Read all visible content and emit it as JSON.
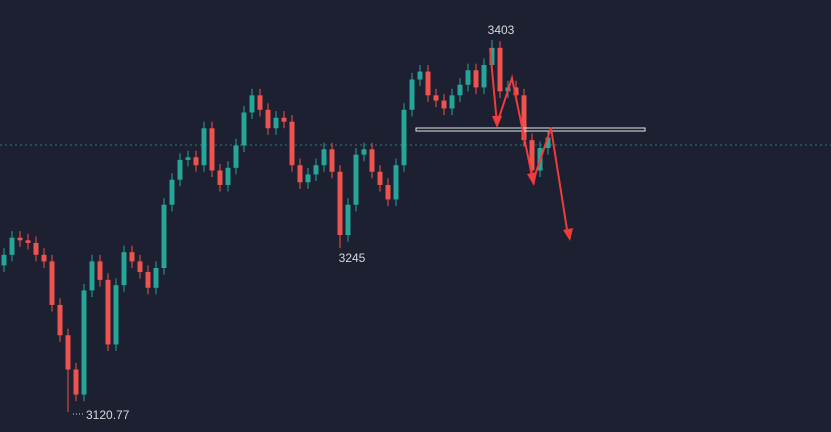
{
  "chart_data": {
    "type": "candlestick",
    "annotations": [
      "3403",
      "3245",
      "3120.77"
    ],
    "up_color": "#26a69a",
    "down_color": "#ef5350",
    "ylim": [
      3105.6,
      3433.3
    ],
    "open": [
      3232,
      3240,
      3253,
      3251,
      3249,
      3240,
      3235,
      3202,
      3179,
      3153,
      3134,
      3213,
      3235,
      3221,
      3172,
      3217,
      3242,
      3235,
      3227,
      3215,
      3230,
      3278,
      3297,
      3312,
      3314,
      3308,
      3336,
      3304,
      3293,
      3306,
      3323,
      3348,
      3361,
      3350,
      3336,
      3344,
      3341,
      3308,
      3295,
      3301,
      3308,
      3320,
      3303,
      3255,
      3278,
      3316,
      3320,
      3303,
      3293,
      3282,
      3308,
      3350,
      3373,
      3379,
      3361,
      3357,
      3351,
      3361,
      3369,
      3380,
      3367,
      3384,
      3397,
      3364,
      3367,
      3361,
      3327,
      3304,
      3321
    ],
    "high": [
      3245,
      3258,
      3258,
      3256,
      3254,
      3245,
      3240,
      3207,
      3184,
      3158,
      3218,
      3240,
      3240,
      3226,
      3222,
      3247,
      3247,
      3240,
      3232,
      3235,
      3283,
      3302,
      3317,
      3319,
      3319,
      3341,
      3341,
      3309,
      3311,
      3328,
      3353,
      3366,
      3366,
      3355,
      3349,
      3349,
      3346,
      3313,
      3306,
      3313,
      3325,
      3325,
      3308,
      3283,
      3321,
      3325,
      3325,
      3308,
      3298,
      3313,
      3355,
      3378,
      3384,
      3384,
      3366,
      3362,
      3366,
      3374,
      3385,
      3385,
      3389,
      3403,
      3402,
      3372,
      3372,
      3366,
      3332,
      3326,
      3334
    ],
    "low": [
      3227,
      3235,
      3246,
      3244,
      3235,
      3230,
      3197,
      3174,
      3120.77,
      3129,
      3129,
      3208,
      3216,
      3167,
      3167,
      3212,
      3230,
      3222,
      3210,
      3210,
      3225,
      3273,
      3292,
      3307,
      3303,
      3303,
      3299,
      3288,
      3288,
      3301,
      3318,
      3343,
      3345,
      3331,
      3331,
      3336,
      3303,
      3290,
      3290,
      3296,
      3303,
      3298,
      3245,
      3250,
      3273,
      3311,
      3298,
      3288,
      3277,
      3277,
      3303,
      3345,
      3368,
      3356,
      3352,
      3346,
      3346,
      3356,
      3364,
      3362,
      3362,
      3379,
      3359,
      3359,
      3356,
      3322,
      3299,
      3299,
      3316
    ],
    "close": [
      3240,
      3253,
      3251,
      3249,
      3240,
      3235,
      3202,
      3179,
      3153,
      3134,
      3213,
      3235,
      3221,
      3172,
      3217,
      3242,
      3235,
      3227,
      3215,
      3230,
      3278,
      3297,
      3312,
      3314,
      3308,
      3336,
      3304,
      3293,
      3306,
      3323,
      3348,
      3361,
      3350,
      3336,
      3344,
      3341,
      3308,
      3295,
      3301,
      3308,
      3320,
      3303,
      3255,
      3278,
      3316,
      3320,
      3303,
      3293,
      3282,
      3308,
      3350,
      3373,
      3379,
      3361,
      3357,
      3351,
      3361,
      3369,
      3380,
      3367,
      3384,
      3397,
      3364,
      3367,
      3361,
      3327,
      3304,
      3321,
      3329
    ]
  }
}
